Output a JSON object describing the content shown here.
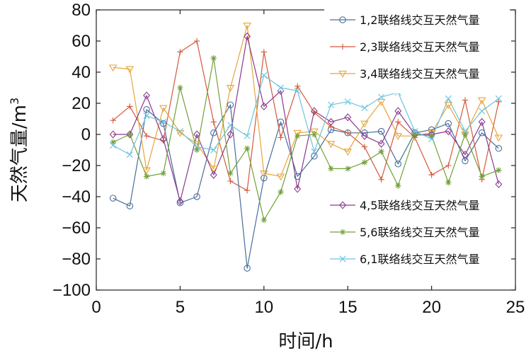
{
  "chart_data": {
    "type": "line",
    "xlabel": "时间/h",
    "ylabel_base": "天然气量/m",
    "ylabel_sup": "3",
    "xlim": [
      0,
      25
    ],
    "ylim": [
      -100,
      80
    ],
    "xticks": [
      0,
      5,
      10,
      15,
      20,
      25
    ],
    "yticks": [
      -100,
      -80,
      -60,
      -40,
      -20,
      0,
      20,
      40,
      60,
      80
    ],
    "x": [
      1,
      2,
      3,
      4,
      5,
      6,
      7,
      8,
      9,
      10,
      11,
      12,
      13,
      14,
      15,
      16,
      17,
      18,
      19,
      20,
      21,
      22,
      23,
      24
    ],
    "legend_top": "upper-right",
    "legend_bottom": "lower-right",
    "series": [
      {
        "name": "1,2联络线交互天然气量",
        "color": "#4a6d9a",
        "marker": "circle",
        "values": [
          -41,
          -46,
          16,
          7,
          -44,
          -40,
          1,
          19,
          -86,
          -28,
          8,
          -27,
          -14,
          3,
          1,
          1,
          2,
          -19,
          1,
          3,
          7,
          -17,
          1,
          -9
        ]
      },
      {
        "name": "2,3联络线交互天然气量",
        "color": "#d4593a",
        "marker": "plus",
        "values": [
          9,
          18,
          -1,
          -4,
          53,
          60,
          8,
          -30,
          -36,
          53,
          -2,
          31,
          14,
          5,
          1,
          -8,
          -29,
          8,
          -2,
          -26,
          -20,
          22,
          -29,
          21
        ]
      },
      {
        "name": "3,4联络线交互天然气量",
        "color": "#e6a63a",
        "marker": "triangle-down",
        "values": [
          43,
          42,
          -23,
          17,
          1,
          -6,
          -22,
          30,
          70,
          -25,
          -27,
          1,
          2,
          -6,
          -11,
          7,
          21,
          -1,
          -1,
          1,
          19,
          0,
          22,
          -2
        ]
      },
      {
        "name": "4,5联络线交互天然气量",
        "color": "#8b3a8e",
        "marker": "diamond",
        "values": [
          0,
          0,
          25,
          -3,
          -43,
          0,
          -26,
          0,
          63,
          18,
          28,
          -35,
          15,
          8,
          11,
          -1,
          -6,
          15,
          0,
          0,
          2,
          -13,
          8,
          -32
        ]
      },
      {
        "name": "5,6联络线交互天然气量",
        "color": "#72a03b",
        "marker": "star",
        "values": [
          -5,
          0,
          -27,
          -25,
          30,
          -10,
          49,
          -25,
          -9,
          -55,
          -37,
          -1,
          0,
          -22,
          -22,
          -18,
          -11,
          -33,
          0,
          -1,
          -31,
          0,
          -27,
          -23
        ]
      },
      {
        "name": "6,1联络线交互天然气量",
        "color": "#6cc4e0",
        "marker": "x",
        "values": [
          -7,
          -13,
          12,
          8,
          2,
          -8,
          -10,
          6,
          -1,
          38,
          30,
          28,
          -11,
          19,
          21,
          17,
          24,
          27,
          2,
          -3,
          23,
          2,
          15,
          23
        ]
      }
    ]
  }
}
